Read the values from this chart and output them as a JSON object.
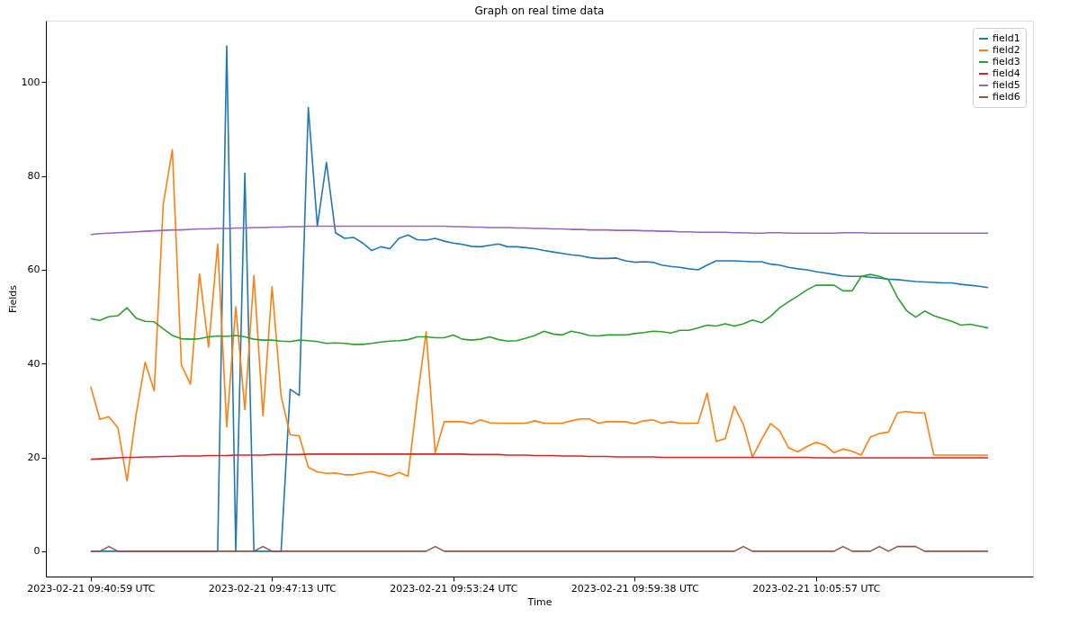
{
  "chart_data": {
    "type": "line",
    "title": "Graph on real time data",
    "xlabel": "Time",
    "ylabel": "Fields",
    "categories": [
      "2023-02-21 09:40:59 UTC",
      null,
      null,
      null,
      null,
      null,
      null,
      null,
      null,
      null,
      null,
      null,
      null,
      null,
      null,
      null,
      null,
      null,
      null,
      null,
      "2023-02-21 09:47:13 UTC",
      null,
      null,
      null,
      null,
      null,
      null,
      null,
      null,
      null,
      null,
      null,
      null,
      null,
      null,
      null,
      null,
      null,
      null,
      null,
      "2023-02-21 09:53:24 UTC",
      null,
      null,
      null,
      null,
      null,
      null,
      null,
      null,
      null,
      null,
      null,
      null,
      null,
      null,
      null,
      null,
      null,
      null,
      null,
      "2023-02-21 09:59:38 UTC",
      null,
      null,
      null,
      null,
      null,
      null,
      null,
      null,
      null,
      null,
      null,
      null,
      null,
      null,
      null,
      null,
      null,
      null,
      null,
      "2023-02-21 10:05:57 UTC",
      null,
      null,
      null,
      null,
      null,
      null,
      null,
      null,
      null,
      null,
      null,
      null,
      null,
      null,
      null,
      null,
      null,
      null,
      null
    ],
    "ylim": [
      -5.4,
      113.1
    ],
    "yticks": [
      0,
      20,
      40,
      60,
      80,
      100
    ],
    "grid": false,
    "legend": "top right",
    "marker": "none",
    "line_style": "solid",
    "series": [
      {
        "name": "field1",
        "color": "#1f77b4",
        "values": [
          0,
          0,
          0,
          0,
          0,
          0,
          0,
          0,
          0,
          0,
          0,
          0,
          0,
          0,
          0,
          107.7,
          0,
          80.6,
          0,
          0,
          0,
          0,
          34.5,
          33.2,
          94.6,
          69.3,
          82.9,
          67.9,
          66.7,
          66.9,
          65.7,
          64.1,
          64.9,
          64.5,
          66.7,
          67.4,
          66.4,
          66.3,
          66.7,
          66.1,
          65.7,
          65.4,
          65.0,
          64.9,
          65.2,
          65.5,
          64.9,
          64.9,
          64.7,
          64.5,
          64.1,
          63.8,
          63.5,
          63.2,
          63.0,
          62.6,
          62.4,
          62.4,
          62.5,
          61.9,
          61.6,
          61.7,
          61.6,
          61.0,
          60.7,
          60.5,
          60.2,
          60.0,
          61.0,
          61.9,
          61.9,
          61.9,
          61.8,
          61.7,
          61.7,
          61.2,
          61.0,
          60.5,
          60.2,
          60.0,
          59.6,
          59.3,
          59.0,
          58.7,
          58.6,
          58.6,
          58.4,
          58.2,
          58.0,
          57.9,
          57.7,
          57.5,
          57.4,
          57.3,
          57.2,
          57.2,
          56.9,
          56.7,
          56.5,
          56.2
        ]
      },
      {
        "name": "field2",
        "color": "#ff7f0e",
        "values": [
          35.1,
          28.1,
          28.7,
          26.3,
          15.0,
          29.1,
          40.3,
          34.2,
          74.0,
          85.6,
          39.7,
          35.6,
          59.1,
          43.5,
          65.5,
          26.5,
          52.1,
          30.2,
          58.8,
          28.9,
          56.4,
          33.1,
          24.8,
          24.6,
          17.9,
          16.9,
          16.6,
          16.7,
          16.3,
          16.3,
          16.7,
          17.0,
          16.5,
          16.0,
          16.8,
          16.0,
          32.2,
          46.8,
          21.0,
          27.6,
          27.6,
          27.6,
          27.2,
          28.0,
          27.4,
          27.3,
          27.3,
          27.3,
          27.3,
          27.8,
          27.3,
          27.3,
          27.3,
          27.8,
          28.2,
          28.2,
          27.3,
          27.6,
          27.6,
          27.6,
          27.2,
          27.8,
          28.0,
          27.3,
          27.6,
          27.3,
          27.3,
          27.3,
          33.7,
          23.4,
          24.0,
          30.9,
          27.0,
          20.1,
          23.8,
          27.2,
          25.7,
          22.0,
          21.2,
          22.3,
          23.2,
          22.6,
          21.0,
          21.8,
          21.3,
          20.5,
          24.3,
          25.1,
          25.4,
          29.5,
          29.8,
          29.5,
          29.5,
          20.5,
          20.5,
          20.5,
          20.5,
          20.5,
          20.5,
          20.5
        ]
      },
      {
        "name": "field3",
        "color": "#2ca02c",
        "values": [
          49.6,
          49.2,
          50.0,
          50.2,
          51.9,
          49.7,
          49.0,
          48.9,
          47.4,
          46.0,
          45.3,
          45.2,
          45.3,
          45.7,
          45.9,
          45.8,
          46.0,
          45.7,
          45.2,
          45.0,
          45.0,
          44.8,
          44.7,
          45.0,
          44.9,
          44.7,
          44.3,
          44.4,
          44.3,
          44.1,
          44.1,
          44.3,
          44.6,
          44.8,
          44.9,
          45.1,
          45.7,
          45.7,
          45.5,
          45.5,
          46.1,
          45.2,
          45.0,
          45.2,
          45.7,
          45.1,
          44.8,
          44.9,
          45.4,
          46.0,
          46.9,
          46.3,
          46.1,
          46.9,
          46.5,
          46.0,
          45.9,
          46.1,
          46.1,
          46.1,
          46.4,
          46.6,
          46.9,
          46.8,
          46.5,
          47.1,
          47.1,
          47.6,
          48.2,
          48.0,
          48.5,
          48.0,
          48.5,
          49.3,
          48.7,
          50.1,
          51.9,
          53.2,
          54.4,
          55.7,
          56.7,
          56.7,
          56.7,
          55.5,
          55.5,
          58.6,
          59.0,
          58.6,
          57.9,
          54.1,
          51.3,
          49.9,
          51.2,
          50.2,
          49.6,
          49.0,
          48.2,
          48.4,
          48.0,
          47.6
        ]
      },
      {
        "name": "field4",
        "color": "#d62728",
        "values": [
          19.6,
          19.7,
          19.8,
          19.9,
          20.0,
          20.0,
          20.1,
          20.1,
          20.2,
          20.2,
          20.3,
          20.3,
          20.3,
          20.4,
          20.4,
          20.4,
          20.5,
          20.5,
          20.5,
          20.5,
          20.6,
          20.6,
          20.6,
          20.6,
          20.7,
          20.7,
          20.7,
          20.7,
          20.7,
          20.7,
          20.7,
          20.7,
          20.7,
          20.7,
          20.7,
          20.7,
          20.7,
          20.7,
          20.7,
          20.7,
          20.7,
          20.7,
          20.6,
          20.6,
          20.6,
          20.6,
          20.5,
          20.5,
          20.5,
          20.4,
          20.4,
          20.4,
          20.3,
          20.3,
          20.3,
          20.2,
          20.2,
          20.2,
          20.1,
          20.1,
          20.1,
          20.1,
          20.1,
          20.0,
          20.0,
          20.0,
          20.0,
          20.0,
          20.0,
          20.0,
          20.0,
          20.0,
          20.0,
          20.0,
          20.0,
          20.0,
          20.0,
          20.0,
          20.0,
          20.0,
          19.9,
          19.9,
          19.9,
          19.9,
          19.9,
          19.9,
          19.9,
          19.9,
          19.9,
          19.9,
          19.9,
          19.9,
          19.9,
          19.9,
          19.9,
          19.9,
          19.9,
          19.9,
          19.9,
          19.9
        ]
      },
      {
        "name": "field5",
        "color": "#9467bd",
        "values": [
          67.5,
          67.7,
          67.8,
          67.9,
          68.0,
          68.1,
          68.2,
          68.3,
          68.4,
          68.5,
          68.5,
          68.6,
          68.7,
          68.7,
          68.8,
          68.8,
          68.9,
          68.9,
          69.0,
          69.0,
          69.1,
          69.1,
          69.2,
          69.2,
          69.3,
          69.3,
          69.3,
          69.3,
          69.3,
          69.3,
          69.3,
          69.3,
          69.3,
          69.3,
          69.3,
          69.3,
          69.3,
          69.3,
          69.3,
          69.3,
          69.2,
          69.2,
          69.1,
          69.1,
          69.0,
          69.0,
          69.0,
          68.9,
          68.9,
          68.8,
          68.8,
          68.7,
          68.7,
          68.6,
          68.6,
          68.5,
          68.5,
          68.5,
          68.4,
          68.4,
          68.4,
          68.3,
          68.3,
          68.2,
          68.2,
          68.1,
          68.1,
          68.0,
          68.0,
          68.0,
          68.0,
          67.9,
          67.9,
          67.8,
          67.8,
          67.9,
          67.9,
          67.8,
          67.8,
          67.8,
          67.8,
          67.8,
          67.8,
          67.9,
          67.9,
          67.9,
          67.8,
          67.8,
          67.8,
          67.8,
          67.8,
          67.8,
          67.8,
          67.8,
          67.8,
          67.8,
          67.8,
          67.8,
          67.8,
          67.8
        ]
      },
      {
        "name": "field6",
        "color": "#8c564b",
        "values": [
          0,
          0,
          1,
          0,
          0,
          0,
          0,
          0,
          0,
          0,
          0,
          0,
          0,
          0,
          0,
          0,
          0,
          0,
          0,
          1,
          0,
          0,
          0,
          0,
          0,
          0,
          0,
          0,
          0,
          0,
          0,
          0,
          0,
          0,
          0,
          0,
          0,
          0,
          1,
          0,
          0,
          0,
          0,
          0,
          0,
          0,
          0,
          0,
          0,
          0,
          0,
          0,
          0,
          0,
          0,
          0,
          0,
          0,
          0,
          0,
          0,
          0,
          0,
          0,
          0,
          0,
          0,
          0,
          0,
          0,
          0,
          0,
          1,
          0,
          0,
          0,
          0,
          0,
          0,
          0,
          0,
          0,
          0,
          1,
          0,
          0,
          0,
          1,
          0,
          1,
          1,
          1,
          0,
          0,
          0,
          0,
          0,
          0,
          0,
          0
        ]
      }
    ]
  }
}
